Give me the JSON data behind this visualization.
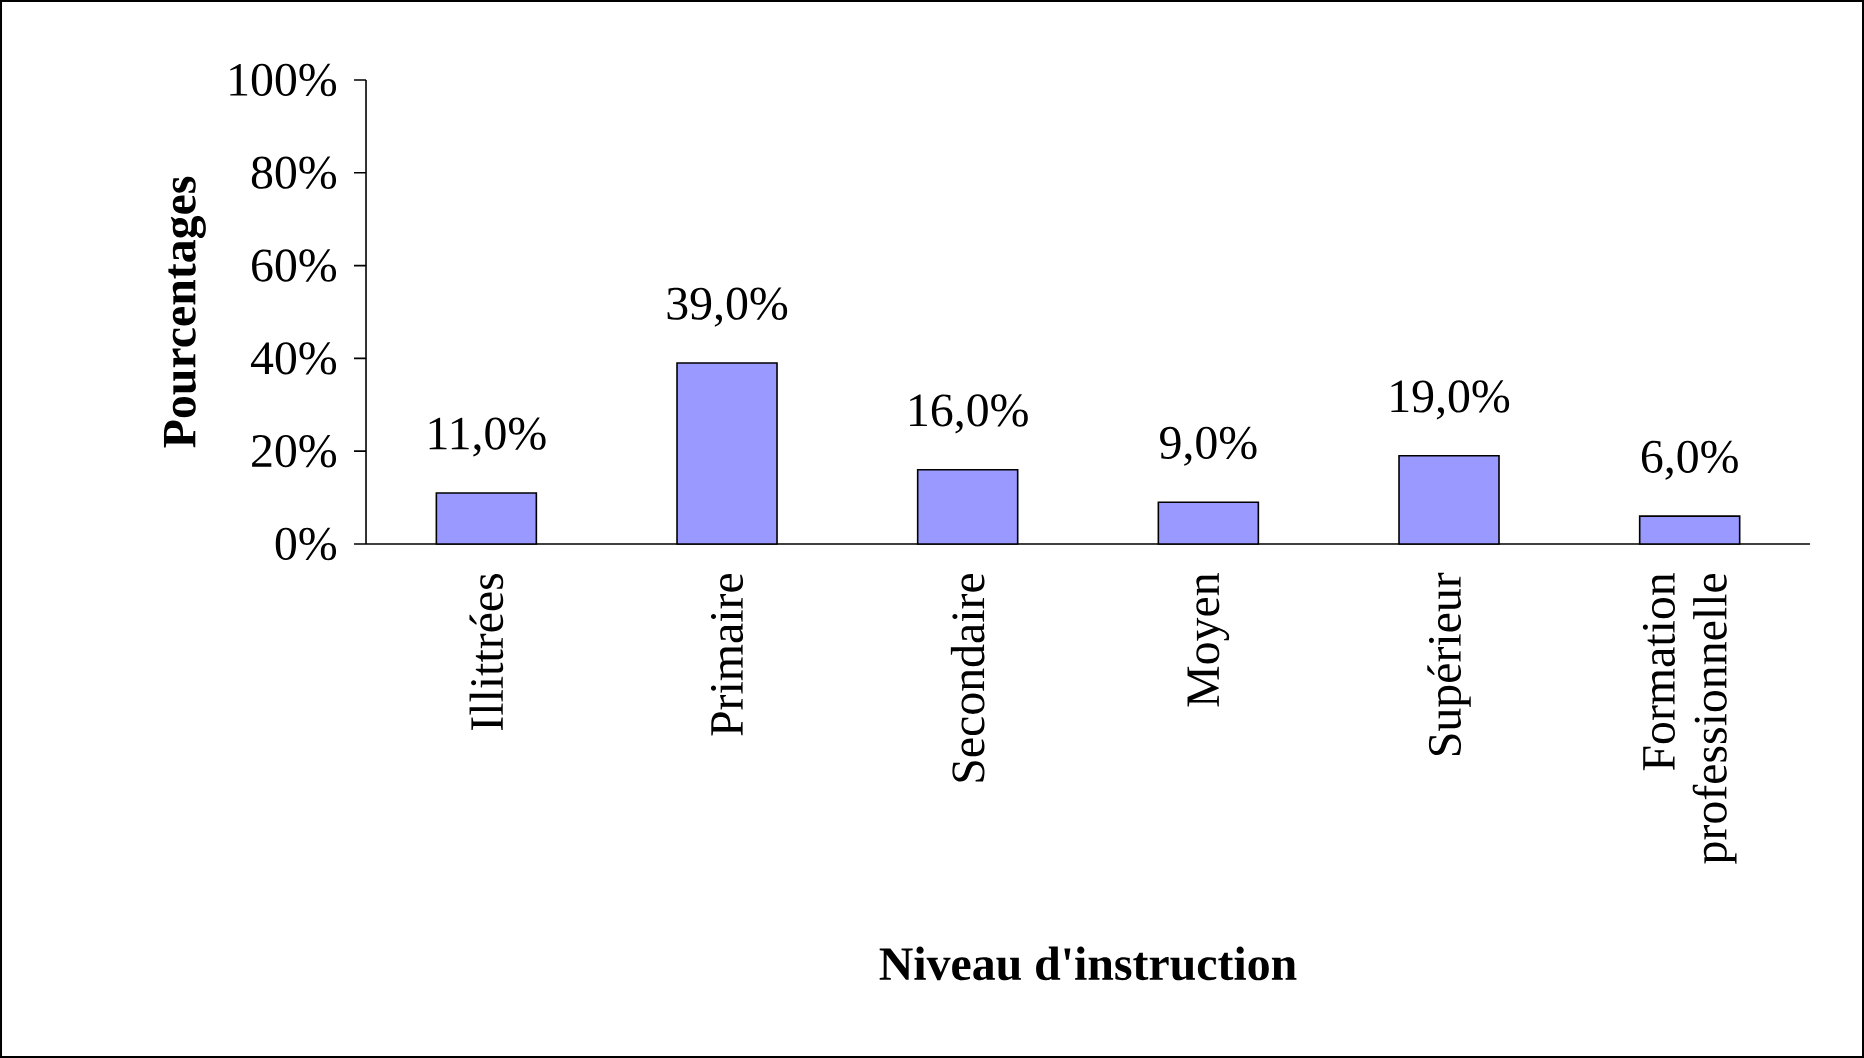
{
  "chart_data": {
    "type": "bar",
    "xlabel": "Niveau d'instruction",
    "ylabel": "Pourcentages",
    "categories": [
      "Illittrées",
      "Primaire",
      "Secondaire",
      "Moyen",
      "Supérieur",
      "Formation professionnelle"
    ],
    "values": [
      11,
      39,
      16,
      9,
      19,
      6
    ],
    "value_labels": [
      "11,0%",
      "39,0%",
      "16,0%",
      "9,0%",
      "19,0%",
      "6,0%"
    ],
    "color": "#9999ff",
    "ylim": [
      0,
      100
    ],
    "yticks": [
      {
        "value": 0,
        "label": "0%"
      },
      {
        "value": 20,
        "label": "20%"
      },
      {
        "value": 40,
        "label": "40%"
      },
      {
        "value": 60,
        "label": "60%"
      },
      {
        "value": 80,
        "label": "80%"
      },
      {
        "value": 100,
        "label": "100%"
      }
    ],
    "grid": false
  }
}
